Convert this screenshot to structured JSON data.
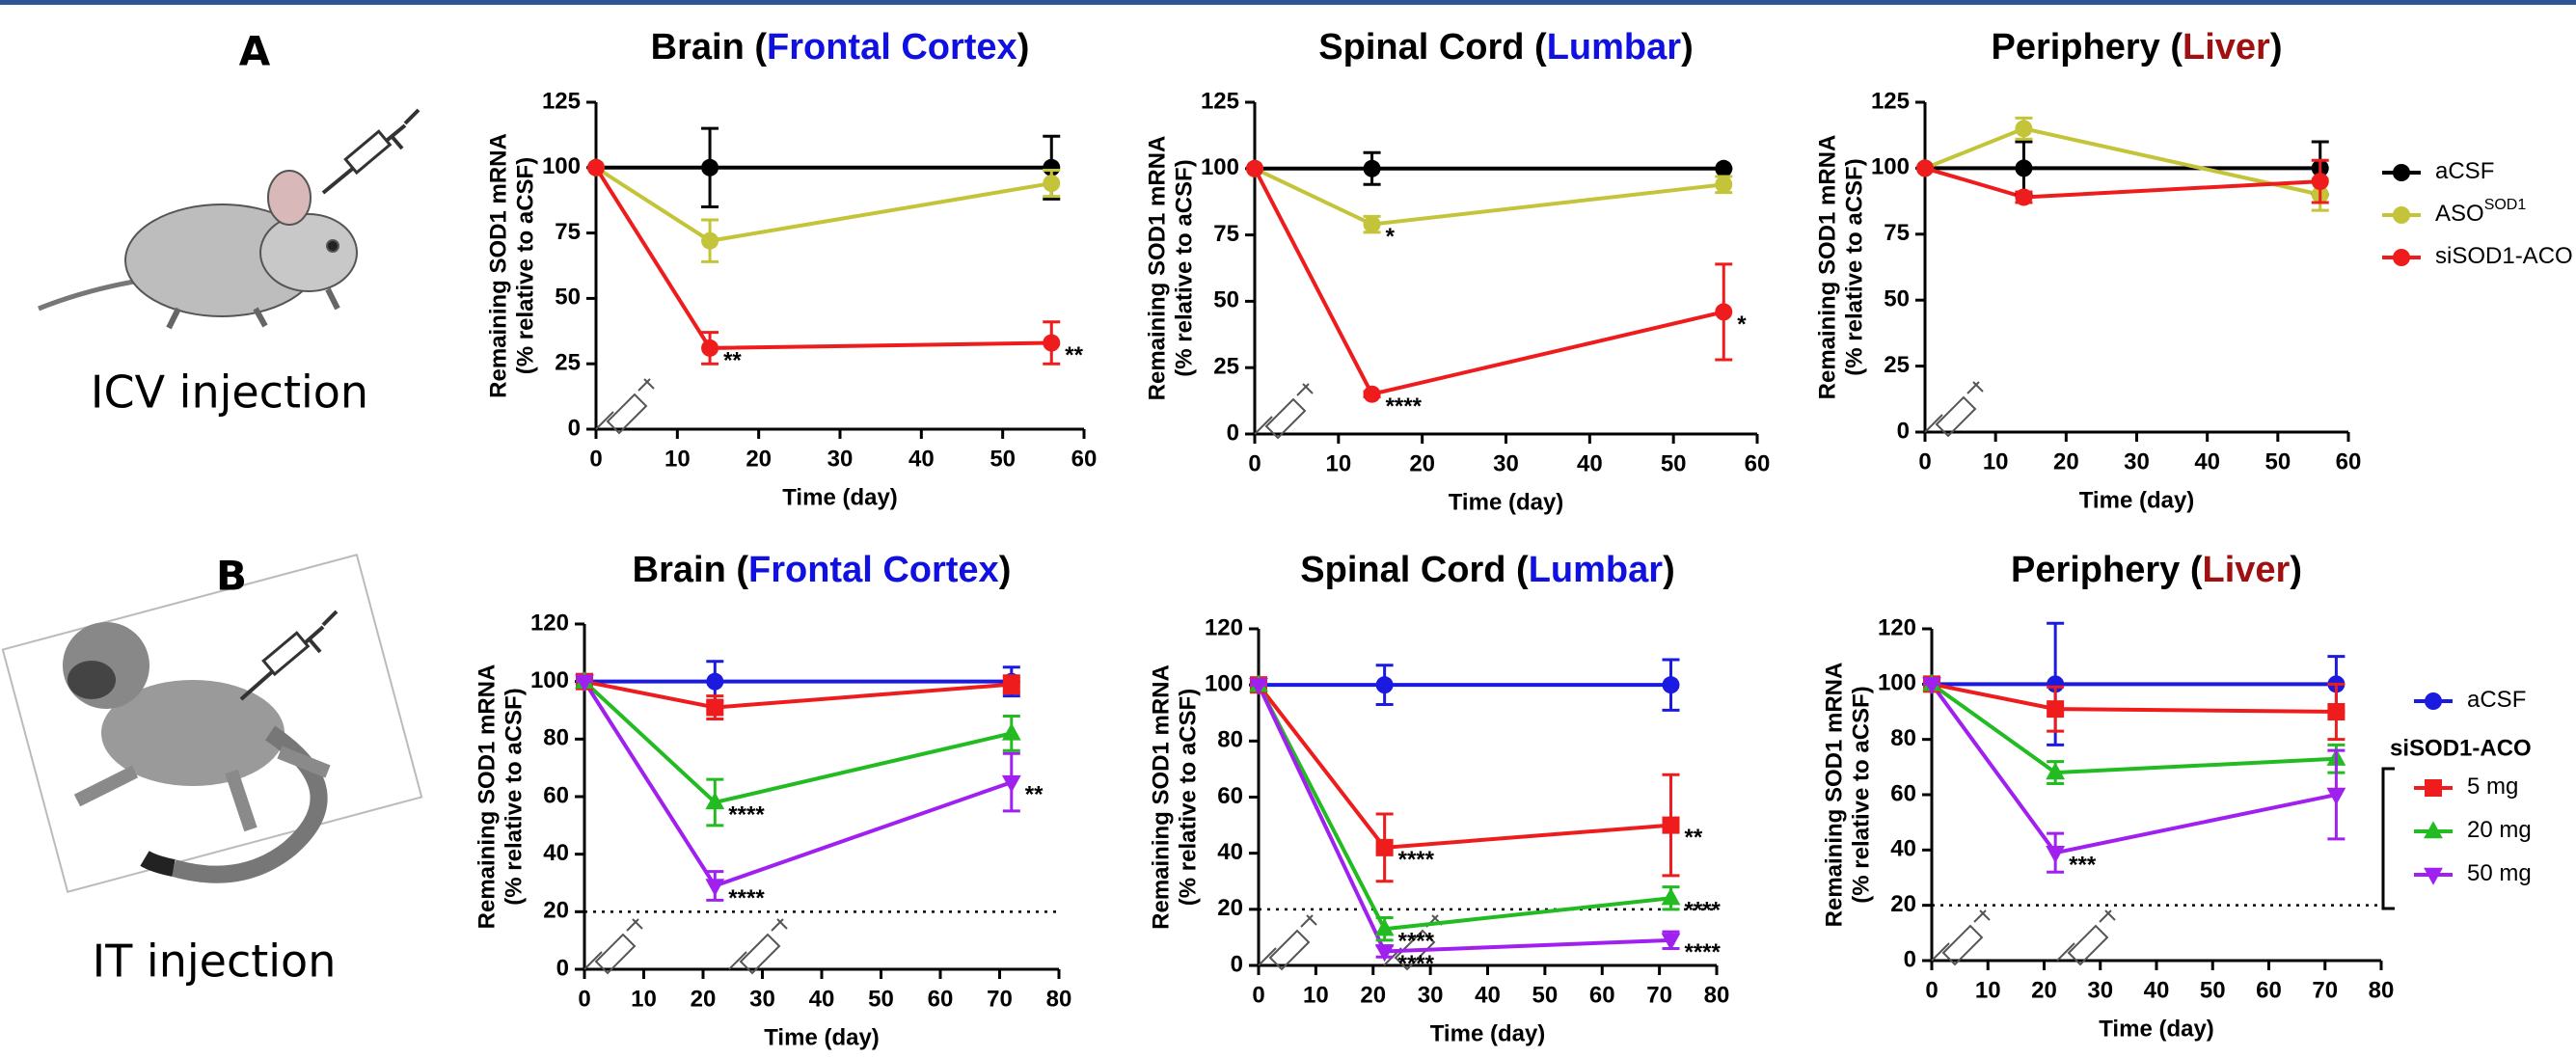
{
  "panels": [
    {
      "letter": "A",
      "caption": "ICV injection"
    },
    {
      "letter": "B",
      "caption": "IT injection"
    }
  ],
  "chart_data": [
    {
      "type": "line",
      "title_parts": [
        {
          "text": "Brain (",
          "color": "#000000"
        },
        {
          "text": "Frontal Cortex",
          "color": "#1010e0"
        },
        {
          "text": ")",
          "color": "#000000"
        }
      ],
      "xlabel": "Time (day)",
      "ylabel": [
        "Remaining SOD1 mRNA",
        "(% relative to aCSF)"
      ],
      "x": [
        0,
        14,
        56
      ],
      "xlim": [
        0,
        60
      ],
      "xticks": [
        0,
        10,
        20,
        30,
        40,
        50,
        60
      ],
      "ylim": [
        0,
        125
      ],
      "yticks": [
        0,
        25,
        50,
        75,
        100,
        125
      ],
      "series": [
        {
          "name": "aCSF",
          "color": "#000000",
          "marker": "circle",
          "values": [
            100,
            100,
            100
          ],
          "errors": [
            0,
            15,
            12
          ],
          "annotations": [
            null,
            null,
            null
          ]
        },
        {
          "name": "ASO",
          "name_sup": "SOD1",
          "color": "#c4c43a",
          "marker": "circle",
          "values": [
            100,
            72,
            94
          ],
          "errors": [
            0,
            8,
            5
          ],
          "annotations": [
            null,
            null,
            null
          ]
        },
        {
          "name": "siSOD1-ACO",
          "color": "#ee1c1c",
          "marker": "circle",
          "values": [
            100,
            31,
            33
          ],
          "errors": [
            0,
            6,
            8
          ],
          "annotations": [
            null,
            "**",
            "**"
          ]
        }
      ]
    },
    {
      "type": "line",
      "title_parts": [
        {
          "text": "Spinal Cord (",
          "color": "#000000"
        },
        {
          "text": "Lumbar",
          "color": "#1010e0"
        },
        {
          "text": ")",
          "color": "#000000"
        }
      ],
      "xlabel": "Time (day)",
      "ylabel": [
        "Remaining SOD1 mRNA",
        "(% relative to aCSF)"
      ],
      "x": [
        0,
        14,
        56
      ],
      "xlim": [
        0,
        60
      ],
      "xticks": [
        0,
        10,
        20,
        30,
        40,
        50,
        60
      ],
      "ylim": [
        0,
        125
      ],
      "yticks": [
        0,
        25,
        50,
        75,
        100,
        125
      ],
      "series": [
        {
          "name": "aCSF",
          "color": "#000000",
          "marker": "circle",
          "values": [
            100,
            100,
            100
          ],
          "errors": [
            0,
            6,
            0
          ],
          "annotations": [
            null,
            null,
            null
          ]
        },
        {
          "name": "ASO",
          "name_sup": "SOD1",
          "color": "#c4c43a",
          "marker": "circle",
          "values": [
            100,
            79,
            94
          ],
          "errors": [
            0,
            3,
            3
          ],
          "annotations": [
            null,
            "*",
            null
          ]
        },
        {
          "name": "siSOD1-ACO",
          "color": "#ee1c1c",
          "marker": "circle",
          "values": [
            100,
            15,
            46
          ],
          "errors": [
            0,
            1,
            18
          ],
          "annotations": [
            null,
            "****",
            "*"
          ]
        }
      ]
    },
    {
      "type": "line",
      "title_parts": [
        {
          "text": "Periphery (",
          "color": "#000000"
        },
        {
          "text": "Liver",
          "color": "#a01010"
        },
        {
          "text": ")",
          "color": "#000000"
        }
      ],
      "xlabel": "Time (day)",
      "ylabel": [
        "Remaining SOD1 mRNA",
        "(% relative to aCSF)"
      ],
      "legend": "right",
      "x": [
        0,
        14,
        56
      ],
      "xlim": [
        0,
        60
      ],
      "xticks": [
        0,
        10,
        20,
        30,
        40,
        50,
        60
      ],
      "ylim": [
        0,
        125
      ],
      "yticks": [
        0,
        25,
        50,
        75,
        100,
        125
      ],
      "series": [
        {
          "name": "aCSF",
          "color": "#000000",
          "marker": "circle",
          "values": [
            100,
            100,
            100
          ],
          "errors": [
            0,
            10,
            10
          ],
          "annotations": [
            null,
            null,
            null
          ]
        },
        {
          "name": "ASO",
          "name_sup": "SOD1",
          "color": "#c4c43a",
          "marker": "circle",
          "values": [
            100,
            115,
            90
          ],
          "errors": [
            0,
            4,
            6
          ],
          "annotations": [
            null,
            null,
            null
          ]
        },
        {
          "name": "siSOD1-ACO",
          "color": "#ee1c1c",
          "marker": "circle",
          "values": [
            100,
            89,
            95
          ],
          "errors": [
            0,
            2,
            8
          ],
          "annotations": [
            null,
            null,
            null
          ]
        }
      ]
    },
    {
      "type": "line",
      "title_parts": [
        {
          "text": "Brain (",
          "color": "#000000"
        },
        {
          "text": "Frontal Cortex",
          "color": "#1010e0"
        },
        {
          "text": ")",
          "color": "#000000"
        }
      ],
      "xlabel": "Time (day)",
      "ylabel": [
        "Remaining SOD1 mRNA",
        "(% relative to aCSF)"
      ],
      "hline": 20,
      "x": [
        0,
        22,
        72
      ],
      "xlim": [
        0,
        80
      ],
      "xticks": [
        0,
        10,
        20,
        30,
        40,
        50,
        60,
        70,
        80
      ],
      "ylim": [
        0,
        120
      ],
      "yticks": [
        0,
        20,
        40,
        60,
        80,
        100,
        120
      ],
      "series": [
        {
          "name": "aCSF",
          "color": "#1a1ae0",
          "marker": "circle",
          "values": [
            100,
            100,
            100
          ],
          "errors": [
            0,
            7,
            5
          ],
          "annotations": [
            null,
            null,
            null
          ]
        },
        {
          "name": "5 mg",
          "color": "#ee1c1c",
          "marker": "square",
          "values": [
            100,
            91,
            99
          ],
          "errors": [
            0,
            4,
            3
          ],
          "annotations": [
            null,
            null,
            null
          ]
        },
        {
          "name": "20 mg",
          "color": "#22bb22",
          "marker": "triangle-up",
          "values": [
            100,
            58,
            82
          ],
          "errors": [
            0,
            8,
            6
          ],
          "annotations": [
            null,
            "****",
            null
          ]
        },
        {
          "name": "50 mg",
          "color": "#a020f0",
          "marker": "triangle-down",
          "values": [
            100,
            29,
            65
          ],
          "errors": [
            0,
            5,
            10
          ],
          "annotations": [
            null,
            "****",
            "**"
          ]
        }
      ]
    },
    {
      "type": "line",
      "title_parts": [
        {
          "text": "Spinal Cord (",
          "color": "#000000"
        },
        {
          "text": "Lumbar",
          "color": "#1010e0"
        },
        {
          "text": ")",
          "color": "#000000"
        }
      ],
      "xlabel": "Time (day)",
      "ylabel": [
        "Remaining SOD1 mRNA",
        "(% relative to aCSF)"
      ],
      "hline": 20,
      "x": [
        0,
        22,
        72
      ],
      "xlim": [
        0,
        80
      ],
      "xticks": [
        0,
        10,
        20,
        30,
        40,
        50,
        60,
        70,
        80
      ],
      "ylim": [
        0,
        120
      ],
      "yticks": [
        0,
        20,
        40,
        60,
        80,
        100,
        120
      ],
      "series": [
        {
          "name": "aCSF",
          "color": "#1a1ae0",
          "marker": "circle",
          "values": [
            100,
            100,
            100
          ],
          "errors": [
            0,
            7,
            9
          ],
          "annotations": [
            null,
            null,
            null
          ]
        },
        {
          "name": "5 mg",
          "color": "#ee1c1c",
          "marker": "square",
          "values": [
            100,
            42,
            50
          ],
          "errors": [
            0,
            12,
            18
          ],
          "annotations": [
            null,
            "****",
            "**"
          ]
        },
        {
          "name": "20 mg",
          "color": "#22bb22",
          "marker": "triangle-up",
          "values": [
            100,
            13,
            24
          ],
          "errors": [
            0,
            4,
            4
          ],
          "annotations": [
            null,
            "****",
            "****"
          ]
        },
        {
          "name": "50 mg",
          "color": "#a020f0",
          "marker": "triangle-down",
          "values": [
            100,
            5,
            9
          ],
          "errors": [
            0,
            2,
            3
          ],
          "annotations": [
            null,
            "****",
            "****"
          ]
        }
      ]
    },
    {
      "type": "line",
      "title_parts": [
        {
          "text": "Periphery (",
          "color": "#000000"
        },
        {
          "text": "Liver",
          "color": "#a01010"
        },
        {
          "text": ")",
          "color": "#000000"
        }
      ],
      "xlabel": "Time (day)",
      "ylabel": [
        "Remaining SOD1 mRNA",
        "(% relative to aCSF)"
      ],
      "hline": 20,
      "legend": "right",
      "legend_title": "siSOD1-ACO",
      "x": [
        0,
        22,
        72
      ],
      "xlim": [
        0,
        80
      ],
      "xticks": [
        0,
        10,
        20,
        30,
        40,
        50,
        60,
        70,
        80
      ],
      "ylim": [
        0,
        120
      ],
      "yticks": [
        0,
        20,
        40,
        60,
        80,
        100,
        120
      ],
      "series": [
        {
          "name": "aCSF",
          "color": "#1a1ae0",
          "marker": "circle",
          "values": [
            100,
            100,
            100
          ],
          "errors": [
            0,
            22,
            10
          ],
          "annotations": [
            null,
            null,
            null
          ]
        },
        {
          "name": "5 mg",
          "color": "#ee1c1c",
          "marker": "square",
          "values": [
            100,
            91,
            90
          ],
          "errors": [
            0,
            8,
            10
          ],
          "annotations": [
            null,
            null,
            null
          ]
        },
        {
          "name": "20 mg",
          "color": "#22bb22",
          "marker": "triangle-up",
          "values": [
            100,
            68,
            73
          ],
          "errors": [
            0,
            4,
            5
          ],
          "annotations": [
            null,
            null,
            null
          ]
        },
        {
          "name": "50 mg",
          "color": "#a020f0",
          "marker": "triangle-down",
          "values": [
            100,
            39,
            60
          ],
          "errors": [
            0,
            7,
            16
          ],
          "annotations": [
            null,
            "***",
            null
          ]
        }
      ]
    }
  ]
}
